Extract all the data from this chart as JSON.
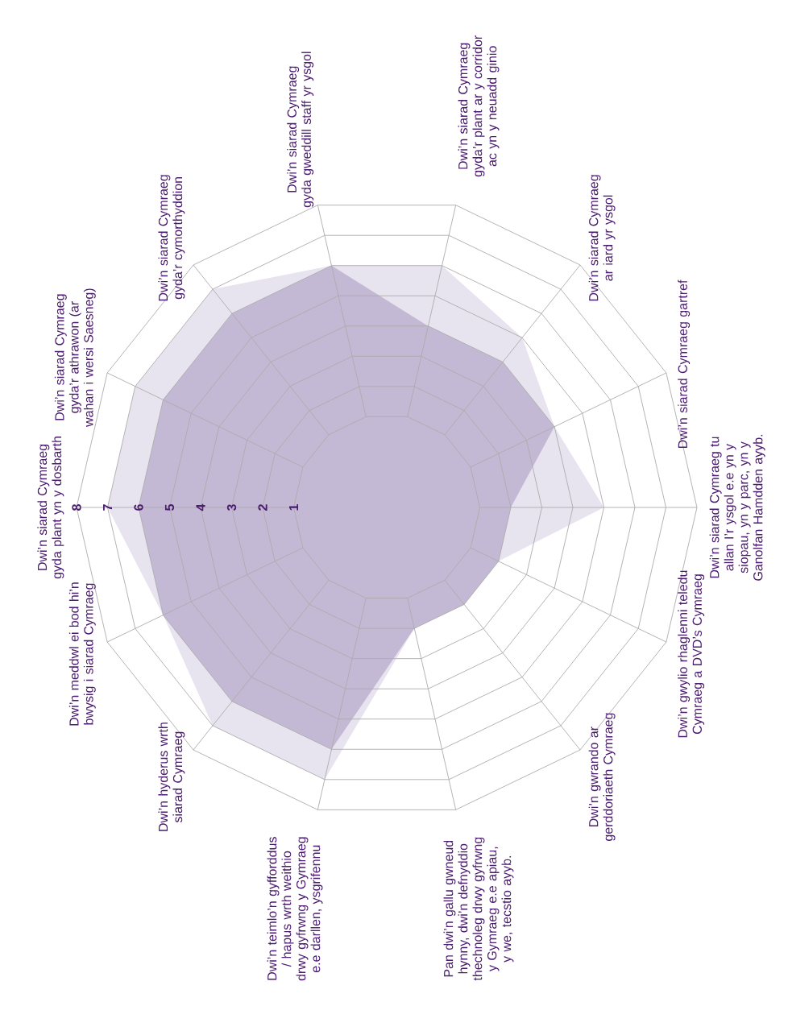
{
  "chart_data": {
    "type": "radar",
    "categories": [
      "Dwi’n siarad Cymraeg gyda plant yn y dosbarth",
      "Dwi’n siarad Cymraeg gyda’r athrawon (ar wahan i wersi Saesneg)",
      "Dwi’n siarad Cymraeg gyda’r cymorthyddion",
      "Dwi’n siarad Cymraeg gyda gweddill staff yr ysgol",
      "Dwi’n siarad Cymraeg gyda’r plant ar y corridor ac yn y neuadd ginio",
      "Dwi’n siarad Cymraeg ar iard yr ysgol",
      "Dwi’n siarad Cymraeg gartref",
      "Dwi’n siarad Cymraeg tu allan I’r ysgol e.e yn y siopau, yn y parc, yn y Ganolfan Hamdden ayyb.",
      "Dwi’n gwylio rhaglenni teledu Cymraeg a DVD’s Cymraeg",
      "Dwi’n gwrando ar gerddoriaeth Cymraeg",
      "Pan dwi’n gallu gwneud hynny, dwi’n defnyddio thechnoleg drwy gyfrwng y Gymraeg e.e apiau, y we, tecstio ayyb.",
      "Dwi’n teimlo’n gyfforddus / hapus wrth weithio drwy gyfrwng y Gymraeg e.e darllen, ysgrifennu",
      "Dwi’n hyderus wrth siarad Cymraeg",
      "Dwi’n meddwl ei bod hi’n bwysig i siarad Cymraeg"
    ],
    "series": [
      {
        "color": "#e8e4ef",
        "values": [
          7,
          7,
          7,
          6,
          6,
          5,
          4,
          5,
          2,
          2,
          2,
          7,
          7,
          6
        ]
      },
      {
        "color": "#c4b9d4",
        "values": [
          6,
          6,
          6,
          6,
          4,
          4,
          4,
          2,
          2,
          2,
          2,
          6,
          6,
          6
        ]
      }
    ],
    "ylim": [
      -2,
      8
    ],
    "yticks": [
      1,
      2,
      3,
      4,
      5,
      6,
      7,
      8
    ],
    "grid": true
  }
}
